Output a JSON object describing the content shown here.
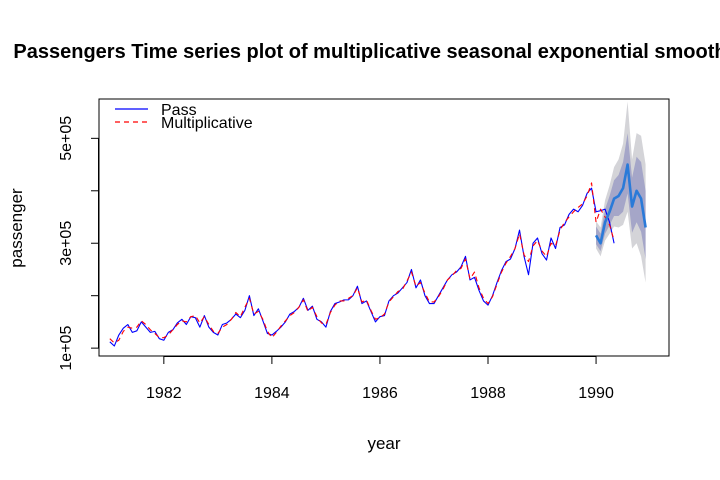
{
  "chart_data": {
    "type": "line",
    "title": "Passengers Time series plot of multiplicative seasonal exponential smoothing",
    "xlabel": "year",
    "ylabel": "passenger",
    "xlim": [
      1980.8,
      1991.35
    ],
    "ylim": [
      85000,
      575000
    ],
    "x_ticks": [
      1982,
      1984,
      1986,
      1988,
      1990
    ],
    "x_tick_labels": [
      "1982",
      "1984",
      "1986",
      "1988",
      "1990"
    ],
    "y_ticks": [
      100000,
      200000,
      300000,
      400000,
      500000
    ],
    "y_tick_labels": [
      "1e+05",
      "",
      "3e+05",
      "",
      "5e+05"
    ],
    "legend": {
      "position": "top-left",
      "entries": [
        {
          "label": "Pass",
          "color": "#0000ff",
          "dash": "solid"
        },
        {
          "label": "Multiplicative",
          "color": "#ff0000",
          "dash": "dashed"
        }
      ]
    },
    "series": [
      {
        "name": "Pass",
        "color": "#0000ff",
        "x_start": 1981.0,
        "step": 0.0833333,
        "values": [
          112000,
          104000,
          125000,
          138000,
          145000,
          130000,
          133000,
          150000,
          140000,
          130000,
          132000,
          118000,
          115000,
          130000,
          135000,
          148000,
          155000,
          145000,
          160000,
          158000,
          140000,
          162000,
          140000,
          130000,
          125000,
          145000,
          148000,
          155000,
          165000,
          158000,
          172000,
          200000,
          162000,
          175000,
          152000,
          128000,
          125000,
          132000,
          140000,
          150000,
          165000,
          170000,
          178000,
          195000,
          172000,
          180000,
          155000,
          150000,
          140000,
          170000,
          185000,
          188000,
          192000,
          192000,
          200000,
          218000,
          185000,
          190000,
          170000,
          150000,
          160000,
          162000,
          190000,
          200000,
          205000,
          215000,
          225000,
          250000,
          215000,
          230000,
          200000,
          185000,
          185000,
          200000,
          215000,
          230000,
          240000,
          245000,
          255000,
          275000,
          230000,
          235000,
          210000,
          190000,
          182000,
          200000,
          225000,
          248000,
          265000,
          270000,
          290000,
          325000,
          275000,
          240000,
          300000,
          310000,
          280000,
          268000,
          310000,
          290000,
          330000,
          335000,
          355000,
          365000,
          360000,
          372000,
          395000,
          405000,
          360000,
          362000,
          365000,
          340000,
          300000
        ]
      },
      {
        "name": "Multiplicative",
        "color": "#ff0000",
        "x_start": 1981.0,
        "step": 0.0833333,
        "values": [
          118000,
          110000,
          115000,
          132000,
          140000,
          138000,
          140000,
          152000,
          145000,
          135000,
          128000,
          120000,
          120000,
          125000,
          135000,
          145000,
          152000,
          150000,
          160000,
          162000,
          148000,
          160000,
          145000,
          132000,
          128000,
          140000,
          145000,
          155000,
          168000,
          160000,
          178000,
          195000,
          165000,
          170000,
          155000,
          132000,
          120000,
          130000,
          142000,
          152000,
          162000,
          168000,
          178000,
          192000,
          170000,
          178000,
          160000,
          148000,
          145000,
          168000,
          182000,
          190000,
          190000,
          195000,
          200000,
          215000,
          188000,
          192000,
          172000,
          155000,
          158000,
          165000,
          188000,
          198000,
          208000,
          212000,
          228000,
          245000,
          218000,
          225000,
          205000,
          188000,
          188000,
          198000,
          212000,
          230000,
          238000,
          248000,
          252000,
          270000,
          232000,
          245000,
          215000,
          195000,
          185000,
          198000,
          222000,
          245000,
          262000,
          275000,
          290000,
          318000,
          278000,
          265000,
          295000,
          305000,
          285000,
          275000,
          300000,
          295000,
          325000,
          340000,
          350000,
          360000,
          368000,
          375000,
          390000,
          415000,
          340000,
          365000,
          350000,
          335000,
          305000
        ]
      },
      {
        "name": "Forecast",
        "color": "#2a7ad8",
        "x_start": 1990.0,
        "step": 0.0833333,
        "values": [
          315000,
          300000,
          340000,
          360000,
          385000,
          390000,
          405000,
          450000,
          370000,
          400000,
          385000,
          330000
        ],
        "inner_band_lower": [
          298000,
          285000,
          318000,
          334000,
          352000,
          352000,
          360000,
          395000,
          320000,
          340000,
          322000,
          270000
        ],
        "inner_band_upper": [
          332000,
          318000,
          365000,
          390000,
          420000,
          430000,
          455000,
          510000,
          425000,
          465000,
          455000,
          400000
        ],
        "outer_band_lower": [
          290000,
          275000,
          305000,
          318000,
          332000,
          330000,
          335000,
          360000,
          290000,
          300000,
          275000,
          225000
        ],
        "outer_band_upper": [
          342000,
          330000,
          382000,
          410000,
          445000,
          460000,
          490000,
          570000,
          460000,
          510000,
          505000,
          450000
        ]
      }
    ]
  }
}
